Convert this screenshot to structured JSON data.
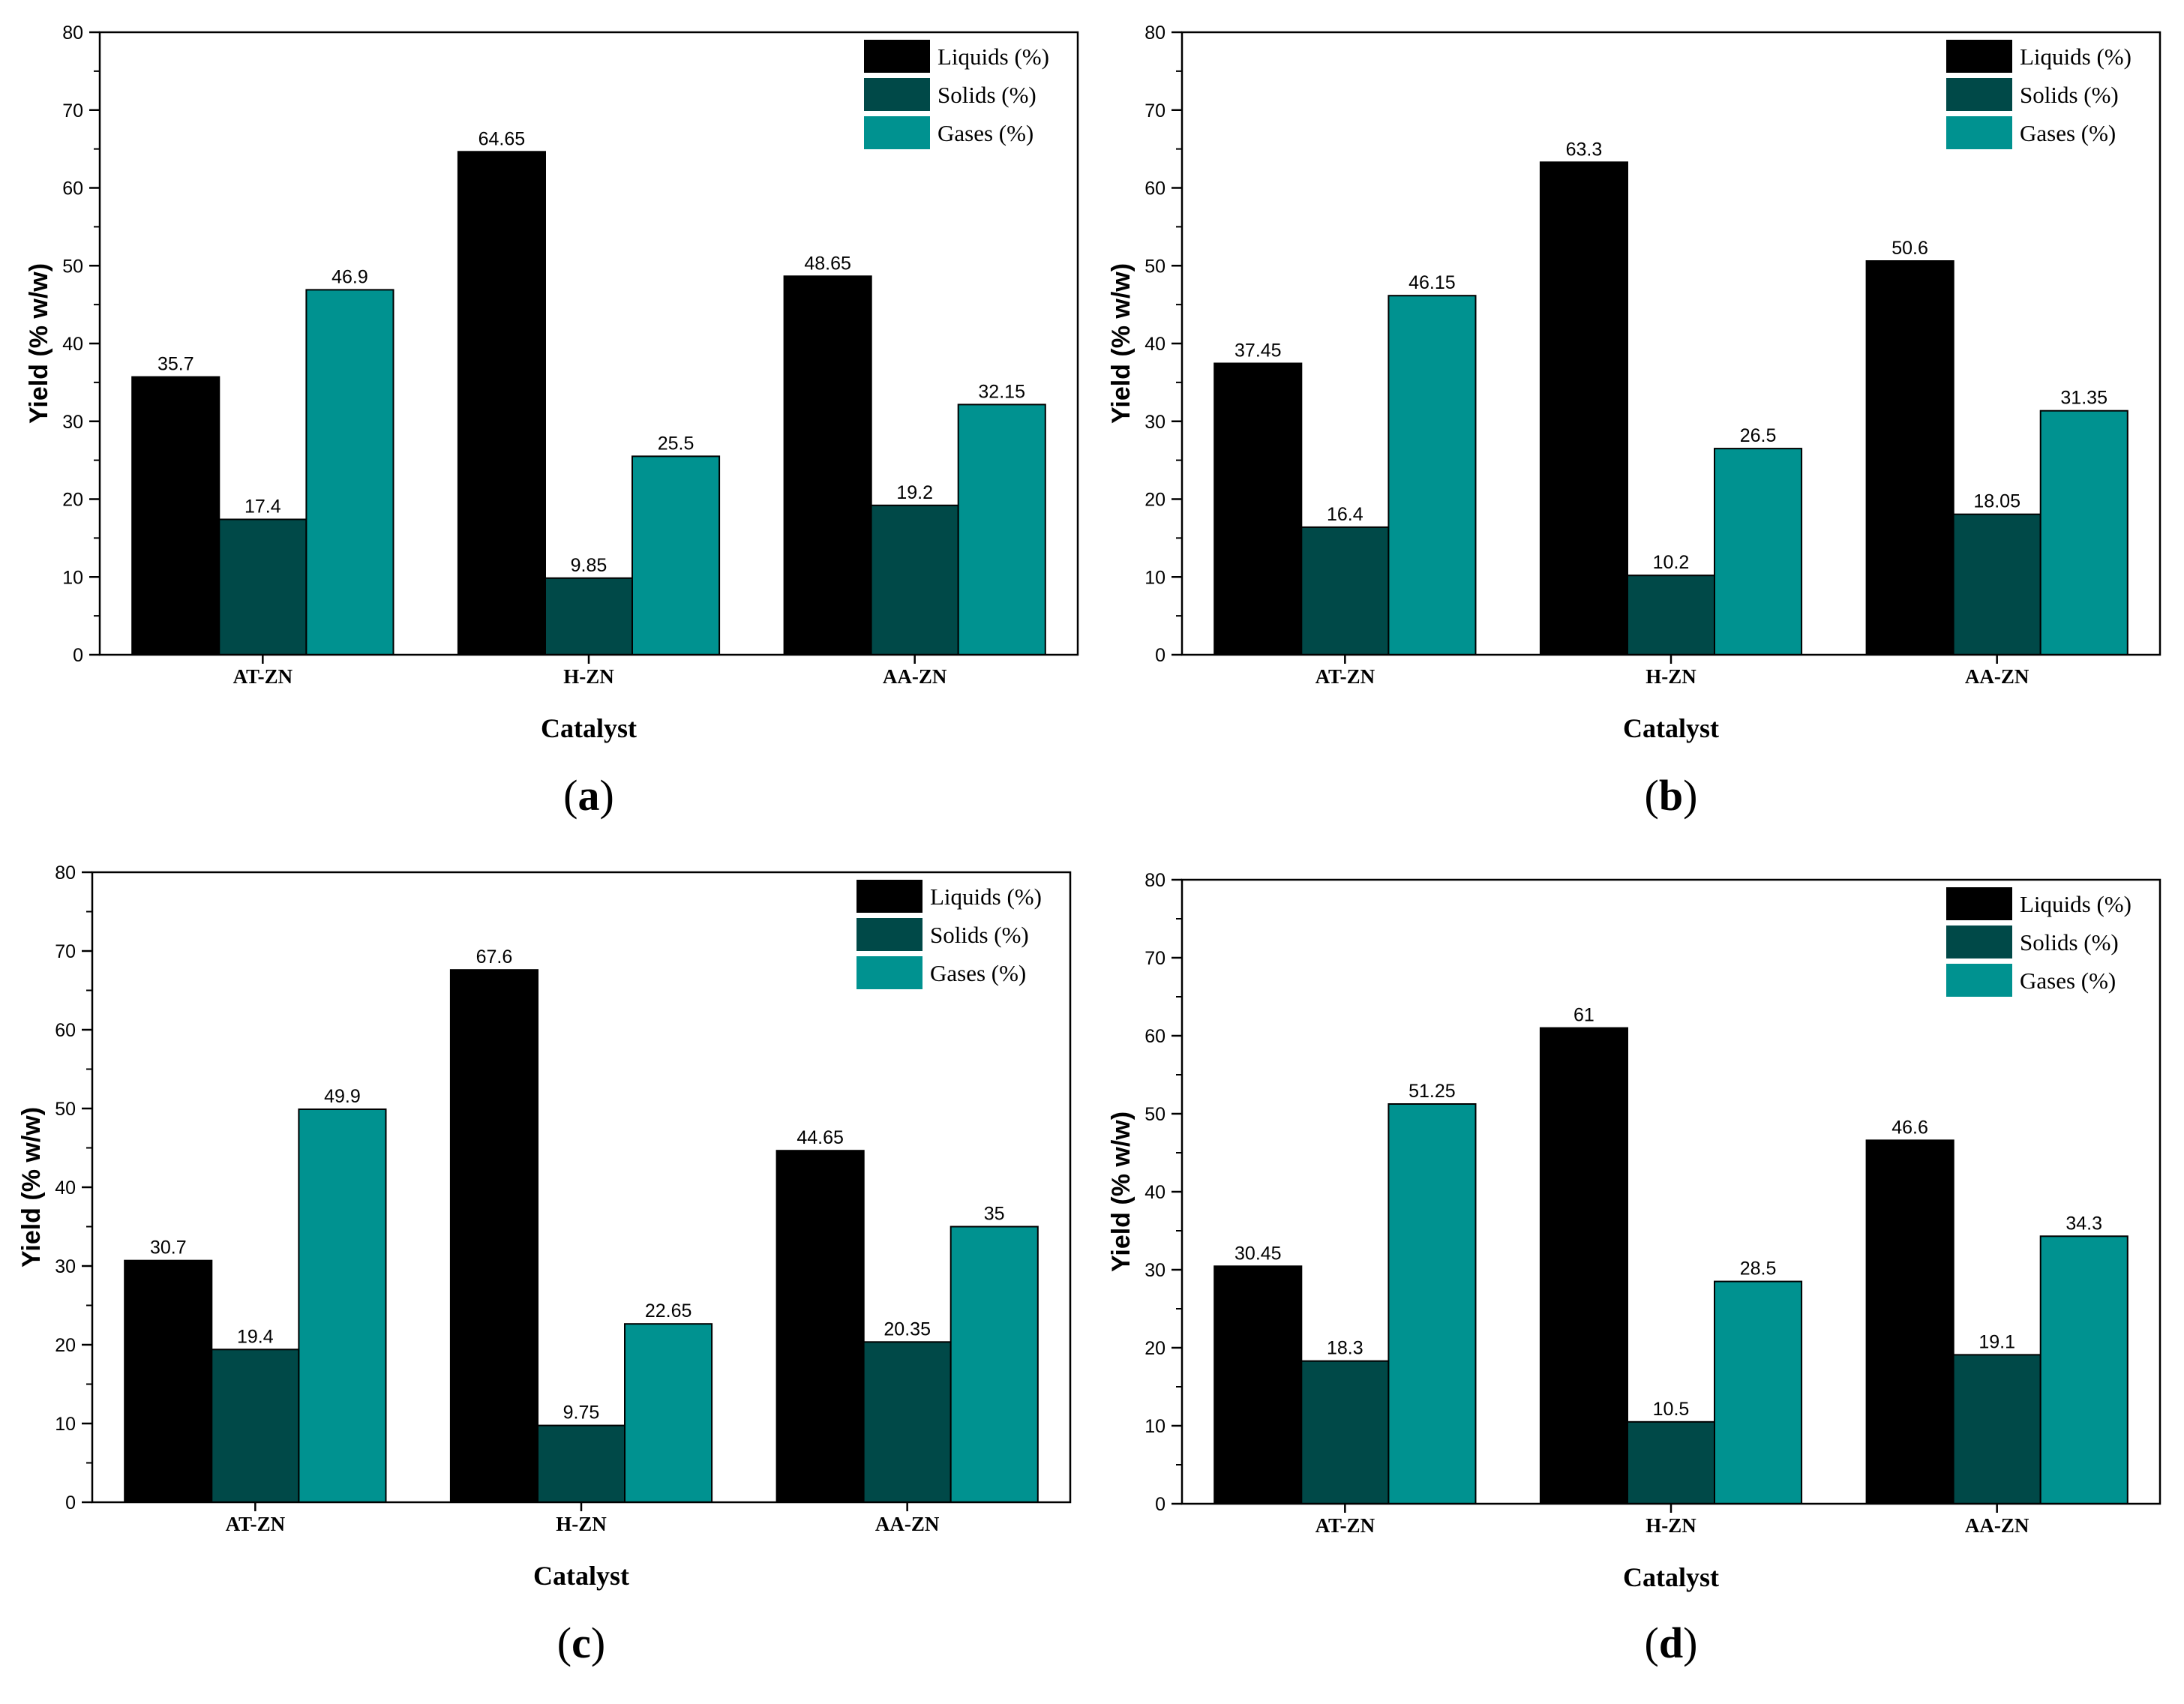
{
  "colors": {
    "liquids": "#000000",
    "solids": "#004948",
    "gases": "#009290",
    "axis": "#000000"
  },
  "chart_data": [
    {
      "type": "bar",
      "panel": "a",
      "categories": [
        "AT-ZN",
        "H-ZN",
        "AA-ZN"
      ],
      "xlabel": "Catalyst",
      "ylabel": "Yield (% w/w)",
      "ylim": [
        0,
        80
      ],
      "yticks": [
        "0",
        "10",
        "20",
        "30",
        "40",
        "50",
        "60",
        "70",
        "80"
      ],
      "legend_position": "top-right",
      "series": [
        {
          "name": "Liquids (%)",
          "values": [
            35.7,
            64.65,
            48.65
          ],
          "labels": [
            "35.7",
            "64.65",
            "48.65"
          ]
        },
        {
          "name": "Solids (%)",
          "values": [
            17.4,
            9.85,
            19.2
          ],
          "labels": [
            "17.4",
            "9.85",
            "19.2"
          ]
        },
        {
          "name": "Gases (%)",
          "values": [
            46.9,
            25.5,
            32.15
          ],
          "labels": [
            "46.9",
            "25.5",
            "32.15"
          ]
        }
      ]
    },
    {
      "type": "bar",
      "panel": "b",
      "categories": [
        "AT-ZN",
        "H-ZN",
        "AA-ZN"
      ],
      "xlabel": "Catalyst",
      "ylabel": "Yield (% w/w)",
      "ylim": [
        0,
        80
      ],
      "yticks": [
        "0",
        "10",
        "20",
        "30",
        "40",
        "50",
        "60",
        "70",
        "80"
      ],
      "legend_position": "top-right",
      "series": [
        {
          "name": "Liquids (%)",
          "values": [
            37.45,
            63.3,
            50.6
          ],
          "labels": [
            "37.45",
            "63.3",
            "50.6"
          ]
        },
        {
          "name": "Solids (%)",
          "values": [
            16.4,
            10.2,
            18.05
          ],
          "labels": [
            "16.4",
            "10.2",
            "18.05"
          ]
        },
        {
          "name": "Gases (%)",
          "values": [
            46.15,
            26.5,
            31.35
          ],
          "labels": [
            "46.15",
            "26.5",
            "31.35"
          ]
        }
      ]
    },
    {
      "type": "bar",
      "panel": "c",
      "categories": [
        "AT-ZN",
        "H-ZN",
        "AA-ZN"
      ],
      "xlabel": "Catalyst",
      "ylabel": "Yield (% w/w)",
      "ylim": [
        0,
        80
      ],
      "yticks": [
        "0",
        "10",
        "20",
        "30",
        "40",
        "50",
        "60",
        "70",
        "80"
      ],
      "legend_position": "top-right",
      "series": [
        {
          "name": "Liquids (%)",
          "values": [
            30.7,
            67.6,
            44.65
          ],
          "labels": [
            "30.7",
            "67.6",
            "44.65"
          ]
        },
        {
          "name": "Solids (%)",
          "values": [
            19.4,
            9.75,
            20.35
          ],
          "labels": [
            "19.4",
            "9.75",
            "20.35"
          ]
        },
        {
          "name": "Gases (%)",
          "values": [
            49.9,
            22.65,
            35
          ],
          "labels": [
            "49.9",
            "22.65",
            "35"
          ]
        }
      ]
    },
    {
      "type": "bar",
      "panel": "d",
      "categories": [
        "AT-ZN",
        "H-ZN",
        "AA-ZN"
      ],
      "xlabel": "Catalyst",
      "ylabel": "Yield (% w/w)",
      "ylim": [
        0,
        80
      ],
      "yticks": [
        "0",
        "10",
        "20",
        "30",
        "40",
        "50",
        "60",
        "70",
        "80"
      ],
      "legend_position": "top-right",
      "series": [
        {
          "name": "Liquids (%)",
          "values": [
            30.45,
            61,
            46.6
          ],
          "labels": [
            "30.45",
            "61",
            "46.6"
          ]
        },
        {
          "name": "Solids (%)",
          "values": [
            18.3,
            10.5,
            19.1
          ],
          "labels": [
            "18.3",
            "10.5",
            "19.1"
          ]
        },
        {
          "name": "Gases (%)",
          "values": [
            51.25,
            28.5,
            34.3
          ],
          "labels": [
            "51.25",
            "28.5",
            "34.3"
          ]
        }
      ]
    }
  ]
}
